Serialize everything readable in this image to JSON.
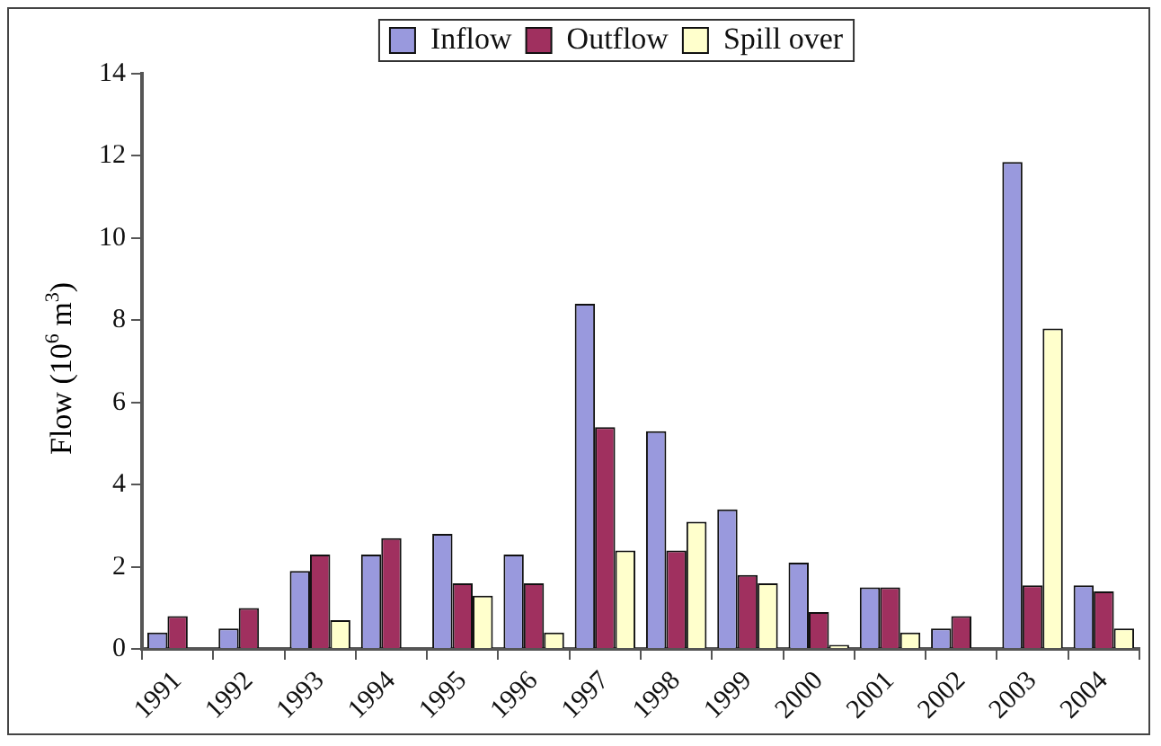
{
  "chart_data": {
    "type": "bar",
    "ylabel": "Flow (10$^{6}$ m$^{3}$)",
    "categories": [
      "1991",
      "1992",
      "1993",
      "1994",
      "1995",
      "1996",
      "1997",
      "1998",
      "1999",
      "2000",
      "2001",
      "2002",
      "2003",
      "2004"
    ],
    "series": [
      {
        "name": "Inflow",
        "color": "#9999dd",
        "values": [
          0.4,
          0.5,
          1.9,
          2.3,
          2.8,
          2.3,
          8.4,
          5.3,
          3.4,
          2.1,
          1.5,
          0.5,
          11.85,
          1.55
        ]
      },
      {
        "name": "Outflow",
        "color": "#a0305f",
        "values": [
          0.8,
          1.0,
          2.3,
          2.7,
          1.6,
          1.6,
          5.4,
          2.4,
          1.8,
          0.9,
          1.5,
          0.8,
          1.55,
          1.4
        ]
      },
      {
        "name": "Spill over",
        "color": "#ffffcc",
        "values": [
          null,
          null,
          0.7,
          null,
          1.3,
          0.4,
          2.4,
          3.1,
          1.6,
          0.1,
          0.4,
          null,
          7.8,
          0.5
        ]
      }
    ],
    "ylim": [
      0,
      14
    ],
    "yticks": [
      0,
      2,
      4,
      6,
      8,
      10,
      12,
      14
    ],
    "grid": false,
    "legend": "top"
  }
}
